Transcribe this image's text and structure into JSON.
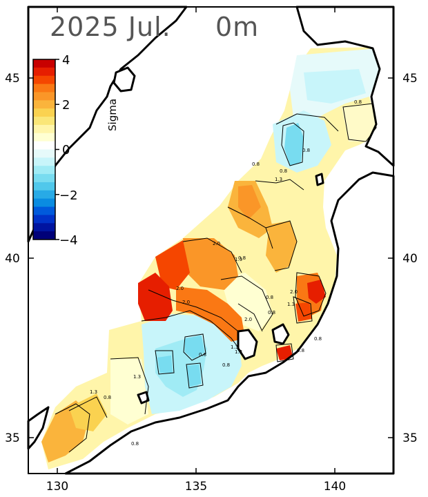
{
  "title": {
    "date": "2025 Jul.",
    "depth": "0m"
  },
  "colorbar": {
    "unit": "Sigma",
    "ticks": [
      "4",
      "2",
      "0",
      "−2",
      "−4"
    ],
    "tick_values": [
      4,
      2,
      0,
      -2,
      -4
    ],
    "range": [
      -4,
      4
    ],
    "colors": [
      "#c80000",
      "#e61e00",
      "#f54600",
      "#fa7814",
      "#fa9628",
      "#fab43c",
      "#fad250",
      "#fae678",
      "#fff5aa",
      "#ffffd2",
      "#ffffff",
      "#e6fafa",
      "#c8f5fa",
      "#a0ebf5",
      "#78dcf0",
      "#50c8eb",
      "#28aae6",
      "#0a8ce1",
      "#005adc",
      "#0032c8",
      "#0014a0",
      "#000078"
    ]
  },
  "axes": {
    "lon_ticks": [
      "130",
      "135",
      "140"
    ],
    "lat_ticks": [
      "45",
      "40",
      "35"
    ],
    "lon_range": [
      129,
      142
    ],
    "lat_range": [
      34,
      46.5
    ]
  },
  "contour_labels": [
    "0.8",
    "1.3",
    "2.0",
    "0.8",
    "1.3",
    "2.0",
    "0.8",
    "1.3",
    "0.8",
    "0.8",
    "2.0",
    "1.3",
    "2.0",
    "0.8",
    "0.8",
    "1.3",
    "0.8",
    "1.3",
    "0.8",
    "0.8",
    "0.8",
    "2.0",
    "1.3",
    "0.8",
    "0.8"
  ]
}
